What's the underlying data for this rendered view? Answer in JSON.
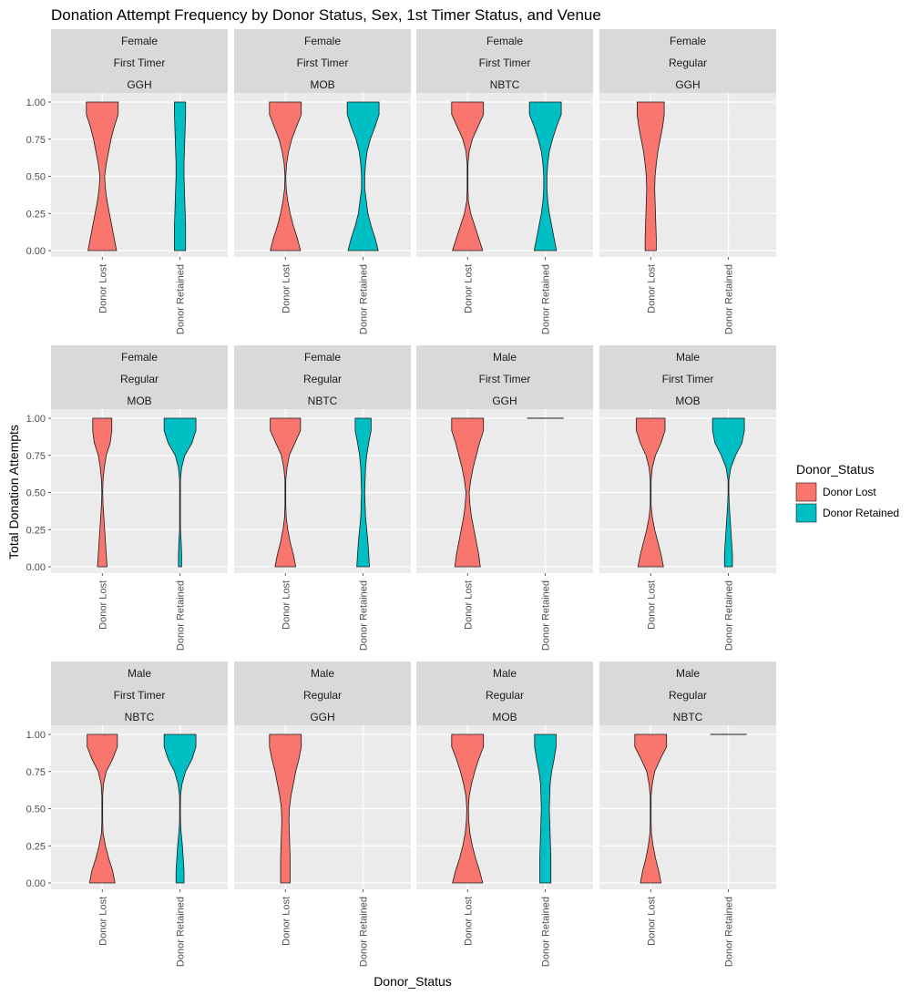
{
  "chart_data": {
    "type": "violin",
    "title": "Donation Attempt Frequency by Donor Status, Sex, 1st Timer Status, and Venue",
    "xlabel": "Donor_Status",
    "ylabel": "Total Donation Attempts",
    "ylim": [
      0,
      1
    ],
    "y_ticks": [
      "0.00",
      "0.25",
      "0.50",
      "0.75",
      "1.00"
    ],
    "categories": [
      "Donor Lost",
      "Donor Retained"
    ],
    "legend": {
      "title": "Donor_Status",
      "placement": "right",
      "entries": [
        {
          "name": "Donor Lost",
          "color": "#F8766D"
        },
        {
          "name": "Donor Retained",
          "color": "#00BFC4"
        }
      ]
    },
    "grid": true,
    "panels": [
      {
        "strip": [
          "Female",
          "First Timer",
          "GGH"
        ],
        "violins": {
          "Donor Lost": [
            0.36,
            0.3,
            0.24,
            0.18,
            0.12,
            0.08,
            0.06,
            0.1,
            0.16,
            0.22,
            0.3,
            0.4,
            0.4
          ],
          "Donor Retained": [
            0.14,
            0.14,
            0.14,
            0.13,
            0.12,
            0.11,
            0.1,
            0.1,
            0.11,
            0.12,
            0.13,
            0.14,
            0.14
          ]
        }
      },
      {
        "strip": [
          "Female",
          "First Timer",
          "MOB"
        ],
        "violins": {
          "Donor Lost": [
            0.38,
            0.3,
            0.2,
            0.12,
            0.06,
            0.02,
            0.01,
            0.03,
            0.08,
            0.16,
            0.28,
            0.4,
            0.4
          ],
          "Donor Retained": [
            0.38,
            0.3,
            0.2,
            0.12,
            0.08,
            0.04,
            0.04,
            0.06,
            0.1,
            0.18,
            0.3,
            0.4,
            0.4
          ]
        }
      },
      {
        "strip": [
          "Female",
          "First Timer",
          "NBTC"
        ],
        "violins": {
          "Donor Lost": [
            0.38,
            0.28,
            0.18,
            0.08,
            0.02,
            0.01,
            0.01,
            0.01,
            0.04,
            0.12,
            0.26,
            0.4,
            0.4
          ],
          "Donor Retained": [
            0.28,
            0.22,
            0.16,
            0.1,
            0.06,
            0.04,
            0.04,
            0.06,
            0.1,
            0.18,
            0.28,
            0.4,
            0.4
          ]
        }
      },
      {
        "strip": [
          "Female",
          "Regular",
          "GGH"
        ],
        "violins": {
          "Donor Lost": [
            0.14,
            0.14,
            0.13,
            0.12,
            0.11,
            0.1,
            0.11,
            0.14,
            0.18,
            0.24,
            0.3,
            0.34,
            0.34
          ],
          "Donor Retained": null
        }
      },
      {
        "strip": [
          "Female",
          "Regular",
          "MOB"
        ],
        "violins": {
          "Donor Lost": [
            0.12,
            0.1,
            0.08,
            0.06,
            0.04,
            0.02,
            0.01,
            0.02,
            0.05,
            0.1,
            0.2,
            0.24,
            0.24
          ],
          "Donor Retained": [
            0.04,
            0.04,
            0.03,
            0.01,
            0.01,
            0.01,
            0.01,
            0.01,
            0.04,
            0.12,
            0.3,
            0.4,
            0.4
          ]
        }
      },
      {
        "strip": [
          "Female",
          "Regular",
          "NBTC"
        ],
        "violins": {
          "Donor Lost": [
            0.26,
            0.2,
            0.12,
            0.06,
            0.02,
            0.01,
            0.01,
            0.01,
            0.04,
            0.1,
            0.24,
            0.38,
            0.38
          ],
          "Donor Retained": [
            0.16,
            0.14,
            0.12,
            0.09,
            0.06,
            0.05,
            0.04,
            0.05,
            0.06,
            0.09,
            0.14,
            0.2,
            0.2
          ]
        }
      },
      {
        "strip": [
          "Male",
          "First Timer",
          "GGH"
        ],
        "violins": {
          "Donor Lost": [
            0.32,
            0.28,
            0.22,
            0.16,
            0.1,
            0.06,
            0.04,
            0.08,
            0.14,
            0.22,
            0.3,
            0.4,
            0.4
          ],
          "Donor Retained": null,
          "retained_point": 1.0
        }
      },
      {
        "strip": [
          "Male",
          "First Timer",
          "MOB"
        ],
        "violins": {
          "Donor Lost": [
            0.32,
            0.26,
            0.18,
            0.1,
            0.04,
            0.01,
            0.01,
            0.01,
            0.04,
            0.12,
            0.26,
            0.36,
            0.36
          ],
          "Donor Retained": [
            0.1,
            0.1,
            0.08,
            0.06,
            0.04,
            0.02,
            0.01,
            0.01,
            0.06,
            0.18,
            0.34,
            0.4,
            0.4
          ]
        }
      },
      {
        "strip": [
          "Male",
          "First Timer",
          "NBTC"
        ],
        "violins": {
          "Donor Lost": [
            0.32,
            0.26,
            0.16,
            0.08,
            0.02,
            0.01,
            0.01,
            0.01,
            0.03,
            0.1,
            0.26,
            0.38,
            0.38
          ],
          "Donor Retained": [
            0.1,
            0.1,
            0.08,
            0.06,
            0.03,
            0.01,
            0.01,
            0.01,
            0.05,
            0.14,
            0.3,
            0.4,
            0.4
          ]
        }
      },
      {
        "strip": [
          "Male",
          "Regular",
          "GGH"
        ],
        "violins": {
          "Donor Lost": [
            0.12,
            0.12,
            0.12,
            0.11,
            0.1,
            0.09,
            0.1,
            0.14,
            0.2,
            0.26,
            0.34,
            0.4,
            0.4
          ],
          "Donor Retained": null
        }
      },
      {
        "strip": [
          "Male",
          "Regular",
          "MOB"
        ],
        "violins": {
          "Donor Lost": [
            0.38,
            0.3,
            0.2,
            0.12,
            0.06,
            0.03,
            0.02,
            0.04,
            0.1,
            0.18,
            0.28,
            0.4,
            0.4
          ],
          "Donor Retained": [
            0.14,
            0.14,
            0.14,
            0.13,
            0.12,
            0.11,
            0.1,
            0.11,
            0.12,
            0.16,
            0.22,
            0.27,
            0.27
          ]
        }
      },
      {
        "strip": [
          "Male",
          "Regular",
          "NBTC"
        ],
        "violins": {
          "Donor Lost": [
            0.26,
            0.2,
            0.12,
            0.06,
            0.02,
            0.01,
            0.01,
            0.01,
            0.04,
            0.1,
            0.24,
            0.4,
            0.4
          ],
          "Donor Retained": null,
          "retained_point": 1.0
        }
      }
    ]
  }
}
